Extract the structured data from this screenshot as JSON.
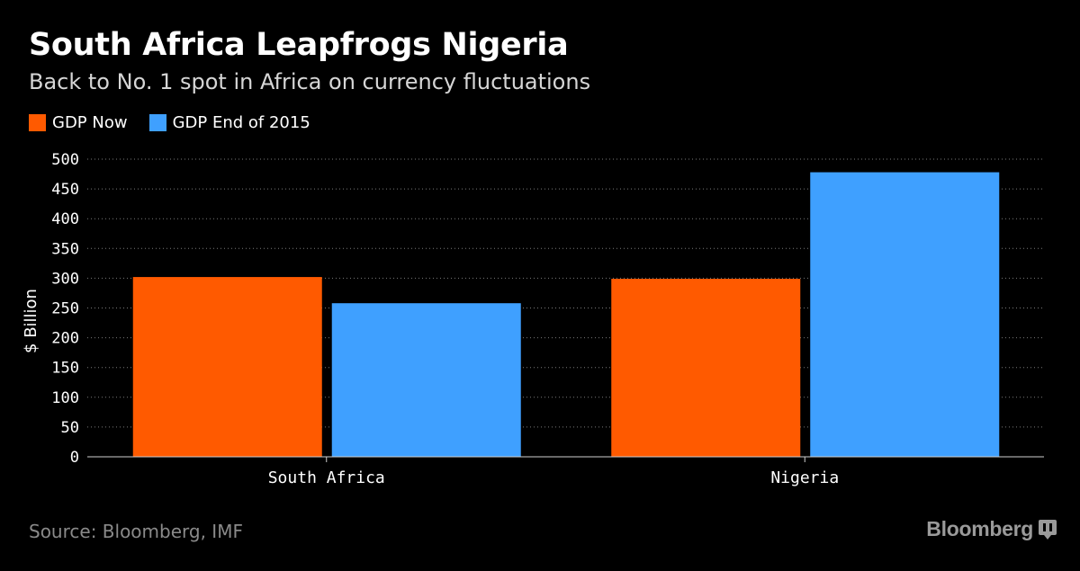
{
  "header": {
    "title": "South Africa Leapfrogs Nigeria",
    "subtitle": "Back to No. 1 spot in Africa on currency fluctuations"
  },
  "legend": [
    {
      "label": "GDP Now",
      "color": "#ff5a00"
    },
    {
      "label": "GDP End of 2015",
      "color": "#3fa0ff"
    }
  ],
  "chart_data": {
    "type": "bar",
    "categories": [
      "South Africa",
      "Nigeria"
    ],
    "series": [
      {
        "name": "GDP Now",
        "values": [
          302,
          299
        ],
        "color": "#ff5a00"
      },
      {
        "name": "GDP End of 2015",
        "values": [
          258,
          478
        ],
        "color": "#3fa0ff"
      }
    ],
    "ylabel": "$ Billion",
    "ylim": [
      0,
      500
    ],
    "yticks": [
      0,
      50,
      100,
      150,
      200,
      250,
      300,
      350,
      400,
      450,
      500
    ],
    "grid": true,
    "legend_position": "top-left"
  },
  "footer": {
    "source": "Source: Bloomberg, IMF",
    "brand": "Bloomberg",
    "brand_icon": "bloomberg-pause-icon"
  }
}
